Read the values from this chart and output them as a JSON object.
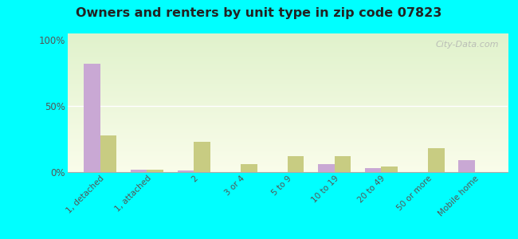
{
  "title": "Owners and renters by unit type in zip code 07823",
  "categories": [
    "1, detached",
    "1, attached",
    "2",
    "3 or 4",
    "5 to 9",
    "10 to 19",
    "20 to 49",
    "50 or more",
    "Mobile home"
  ],
  "owner_values": [
    82,
    2,
    1,
    0,
    0,
    6,
    3,
    0,
    9
  ],
  "renter_values": [
    28,
    2,
    23,
    6,
    12,
    12,
    4,
    18,
    0
  ],
  "owner_color": "#c9a8d4",
  "renter_color": "#c8cc82",
  "background_color": "#00ffff",
  "ylabel_ticks": [
    "0%",
    "50%",
    "100%"
  ],
  "yticks": [
    0,
    50,
    100
  ],
  "ylim": [
    0,
    105
  ],
  "bar_width": 0.35,
  "watermark": "City-Data.com"
}
